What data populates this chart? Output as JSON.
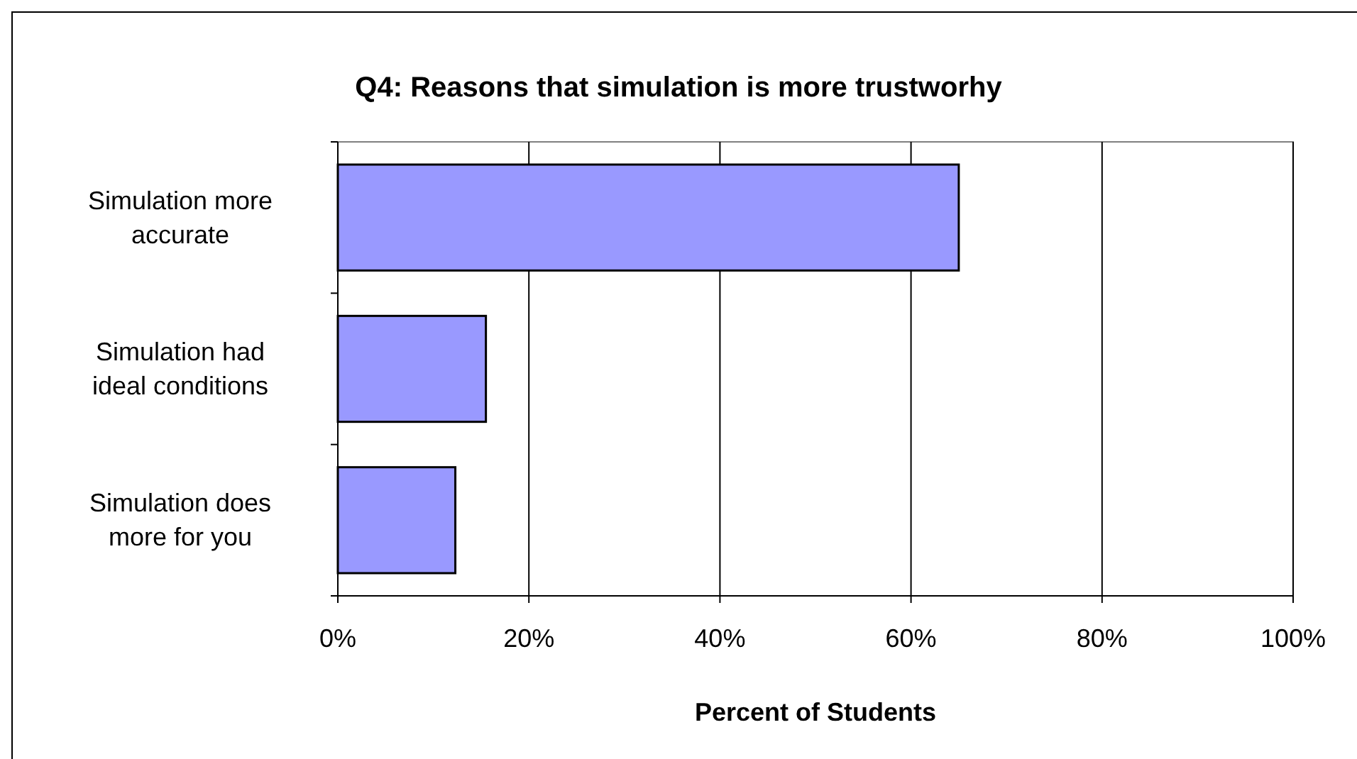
{
  "chart_data": {
    "type": "bar",
    "orientation": "horizontal",
    "title": "Q4: Reasons that simulation is more trustworhy",
    "xlabel": "Percent of Students",
    "categories": [
      "Simulation more accurate",
      "Simulation had ideal conditions",
      "Simulation does more for you"
    ],
    "values": [
      65,
      15.5,
      12.3
    ],
    "color": "#9999ff",
    "xlim": [
      0,
      100
    ],
    "xticks": [
      {
        "value": 0,
        "label": "0%"
      },
      {
        "value": 20,
        "label": "20%"
      },
      {
        "value": 40,
        "label": "40%"
      },
      {
        "value": 60,
        "label": "60%"
      },
      {
        "value": 80,
        "label": "80%"
      },
      {
        "value": 100,
        "label": "100%"
      }
    ],
    "grid": "x"
  }
}
